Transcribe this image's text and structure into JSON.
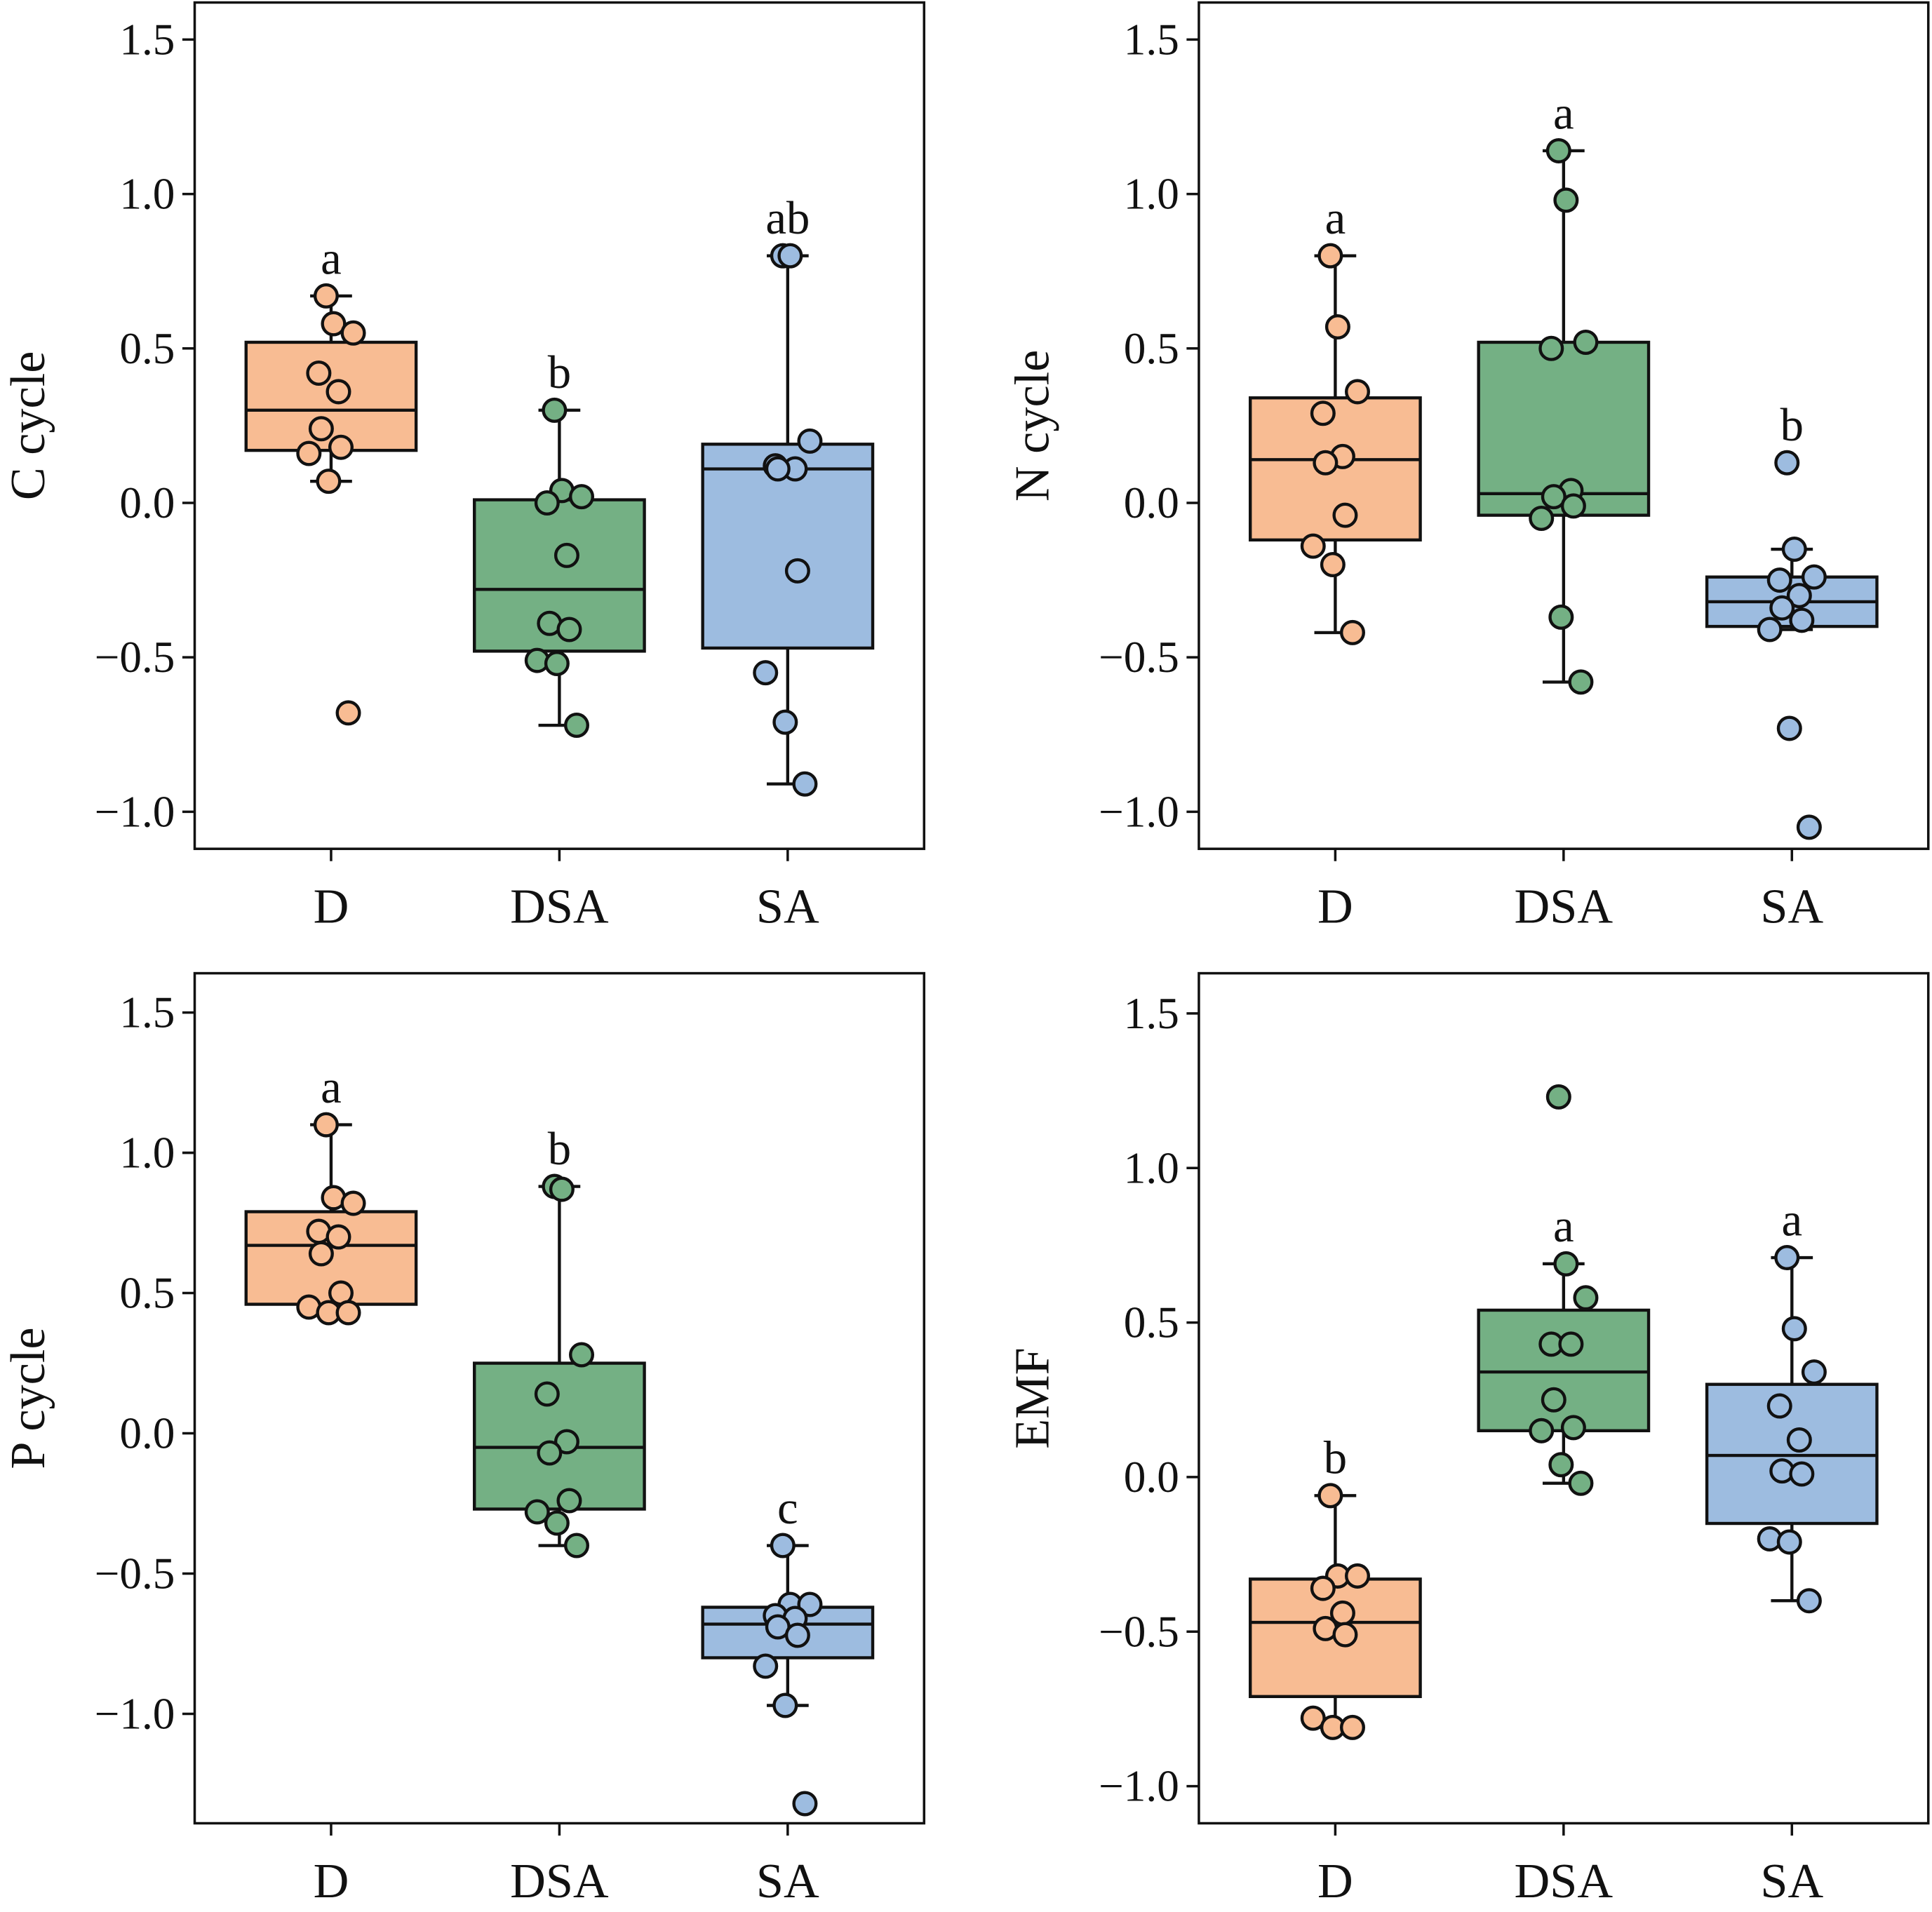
{
  "colors": {
    "D": "#F8BC93",
    "DSA": "#74B084",
    "SA": "#9DBCE0"
  },
  "chart_data": [
    {
      "type": "box",
      "ylabel": "C cycle",
      "ylim": [
        -1.12,
        1.62
      ],
      "yticks": [
        -1.0,
        -0.5,
        0.0,
        0.5,
        1.0,
        1.5
      ],
      "ytick_labels": [
        "−1.0",
        "−0.5",
        "0.0",
        "0.5",
        "1.0",
        "1.5"
      ],
      "categories": [
        "D",
        "DSA",
        "SA"
      ],
      "groups": [
        {
          "name": "D",
          "letter": "a",
          "q1": 0.17,
          "median": 0.3,
          "q3": 0.52,
          "whisker_low": 0.07,
          "whisker_high": 0.67,
          "points": [
            0.67,
            0.58,
            0.55,
            0.42,
            0.36,
            0.24,
            0.18,
            0.16,
            0.07,
            -0.68
          ]
        },
        {
          "name": "DSA",
          "letter": "b",
          "q1": -0.48,
          "median": -0.28,
          "q3": 0.01,
          "whisker_low": -0.72,
          "whisker_high": 0.3,
          "points": [
            0.3,
            0.04,
            0.02,
            0.0,
            -0.17,
            -0.39,
            -0.41,
            -0.51,
            -0.52,
            -0.72
          ]
        },
        {
          "name": "SA",
          "letter": "ab",
          "q1": -0.47,
          "median": 0.11,
          "q3": 0.19,
          "whisker_low": -0.91,
          "whisker_high": 0.8,
          "points": [
            0.8,
            0.8,
            0.2,
            0.12,
            0.11,
            0.11,
            -0.22,
            -0.55,
            -0.71,
            -0.91
          ]
        }
      ]
    },
    {
      "type": "box",
      "ylabel": "N cycle",
      "ylim": [
        -1.12,
        1.62
      ],
      "yticks": [
        -1.0,
        -0.5,
        0.0,
        0.5,
        1.0,
        1.5
      ],
      "ytick_labels": [
        "−1.0",
        "−0.5",
        "0.0",
        "0.5",
        "1.0",
        "1.5"
      ],
      "categories": [
        "D",
        "DSA",
        "SA"
      ],
      "groups": [
        {
          "name": "D",
          "letter": "a",
          "q1": -0.12,
          "median": 0.14,
          "q3": 0.34,
          "whisker_low": -0.42,
          "whisker_high": 0.8,
          "points": [
            0.8,
            0.57,
            0.36,
            0.29,
            0.15,
            0.13,
            -0.04,
            -0.14,
            -0.2,
            -0.42
          ]
        },
        {
          "name": "DSA",
          "letter": "a",
          "q1": -0.04,
          "median": 0.03,
          "q3": 0.52,
          "whisker_low": -0.58,
          "whisker_high": 1.14,
          "points": [
            1.14,
            0.98,
            0.52,
            0.5,
            0.04,
            0.02,
            -0.01,
            -0.05,
            -0.37,
            -0.58
          ]
        },
        {
          "name": "SA",
          "letter": "b",
          "q1": -0.4,
          "median": -0.32,
          "q3": -0.24,
          "whisker_low": -0.41,
          "whisker_high": -0.15,
          "points": [
            0.13,
            -0.15,
            -0.24,
            -0.25,
            -0.3,
            -0.34,
            -0.38,
            -0.41,
            -0.73,
            -1.05
          ]
        }
      ]
    },
    {
      "type": "box",
      "ylabel": "P cycle",
      "ylim": [
        -1.39,
        1.64
      ],
      "yticks": [
        -1.0,
        -0.5,
        0.0,
        0.5,
        1.0,
        1.5
      ],
      "ytick_labels": [
        "−1.0",
        "−0.5",
        "0.0",
        "0.5",
        "1.0",
        "1.5"
      ],
      "categories": [
        "D",
        "DSA",
        "SA"
      ],
      "groups": [
        {
          "name": "D",
          "letter": "a",
          "q1": 0.46,
          "median": 0.67,
          "q3": 0.79,
          "whisker_low": 0.43,
          "whisker_high": 1.1,
          "points": [
            1.1,
            0.84,
            0.82,
            0.72,
            0.7,
            0.64,
            0.5,
            0.45,
            0.43,
            0.43
          ]
        },
        {
          "name": "DSA",
          "letter": "b",
          "q1": -0.27,
          "median": -0.05,
          "q3": 0.25,
          "whisker_low": -0.4,
          "whisker_high": 0.88,
          "points": [
            0.88,
            0.87,
            0.28,
            0.14,
            -0.03,
            -0.07,
            -0.24,
            -0.28,
            -0.32,
            -0.4
          ]
        },
        {
          "name": "SA",
          "letter": "c",
          "q1": -0.8,
          "median": -0.68,
          "q3": -0.62,
          "whisker_low": -0.97,
          "whisker_high": -0.4,
          "points": [
            -0.4,
            -0.61,
            -0.61,
            -0.65,
            -0.66,
            -0.69,
            -0.72,
            -0.83,
            -0.97,
            -1.32
          ]
        }
      ]
    },
    {
      "type": "box",
      "ylabel": "EMF",
      "ylim": [
        -1.12,
        1.63
      ],
      "yticks": [
        -1.0,
        -0.5,
        0.0,
        0.5,
        1.0,
        1.5
      ],
      "ytick_labels": [
        "−1.0",
        "−0.5",
        "0.0",
        "0.5",
        "1.0",
        "1.5"
      ],
      "categories": [
        "D",
        "DSA",
        "SA"
      ],
      "groups": [
        {
          "name": "D",
          "letter": "b",
          "q1": -0.71,
          "median": -0.47,
          "q3": -0.33,
          "whisker_low": -0.81,
          "whisker_high": -0.06,
          "points": [
            -0.06,
            -0.32,
            -0.32,
            -0.36,
            -0.44,
            -0.49,
            -0.51,
            -0.78,
            -0.81,
            -0.81
          ]
        },
        {
          "name": "DSA",
          "letter": "a",
          "q1": 0.15,
          "median": 0.34,
          "q3": 0.54,
          "whisker_low": -0.02,
          "whisker_high": 0.69,
          "points": [
            1.23,
            0.69,
            0.58,
            0.43,
            0.43,
            0.25,
            0.16,
            0.15,
            0.04,
            -0.02
          ]
        },
        {
          "name": "SA",
          "letter": "a",
          "q1": -0.15,
          "median": 0.07,
          "q3": 0.3,
          "whisker_low": -0.4,
          "whisker_high": 0.71,
          "points": [
            0.71,
            0.48,
            0.34,
            0.23,
            0.12,
            0.02,
            0.01,
            -0.2,
            -0.21,
            -0.4
          ]
        }
      ]
    }
  ]
}
